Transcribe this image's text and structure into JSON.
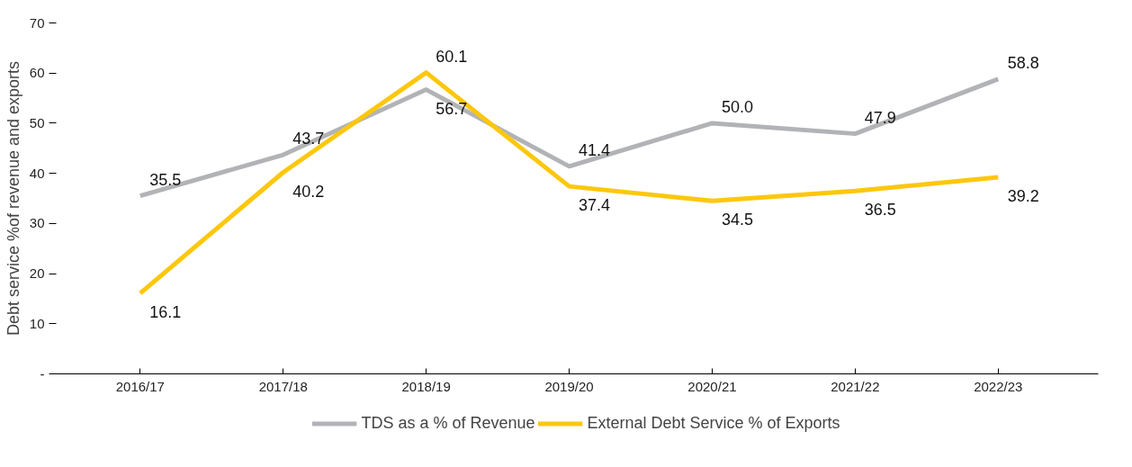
{
  "chart_data": {
    "type": "line",
    "ylabel": "Debt service %of revenue and exports",
    "categories": [
      "2016/17",
      "2017/18",
      "2018/19",
      "2019/20",
      "2020/21",
      "2021/22",
      "2022/23"
    ],
    "series": [
      {
        "name": "TDS as a % of Revenue",
        "color": "#b1b3b6",
        "values": [
          35.5,
          43.7,
          56.7,
          41.4,
          50.0,
          47.9,
          58.8
        ],
        "value_labels": [
          "35.5",
          "43.7",
          "56.7",
          "41.4",
          "50.0",
          "47.9",
          "58.8"
        ]
      },
      {
        "name": "External Debt Service % of Exports",
        "color": "#fdc70c",
        "values": [
          16.1,
          40.2,
          60.1,
          37.4,
          34.5,
          36.5,
          39.2
        ],
        "value_labels": [
          "16.1",
          "40.2",
          "60.1",
          "37.4",
          "34.5",
          "36.5",
          "39.2"
        ]
      }
    ],
    "ylim": [
      0,
      70
    ],
    "yticks": [
      {
        "value": 0,
        "label": "-"
      },
      10,
      20,
      30,
      40,
      50,
      60,
      70
    ],
    "grid": false,
    "legend": "bottom",
    "marker": "none",
    "line_style": "solid"
  }
}
